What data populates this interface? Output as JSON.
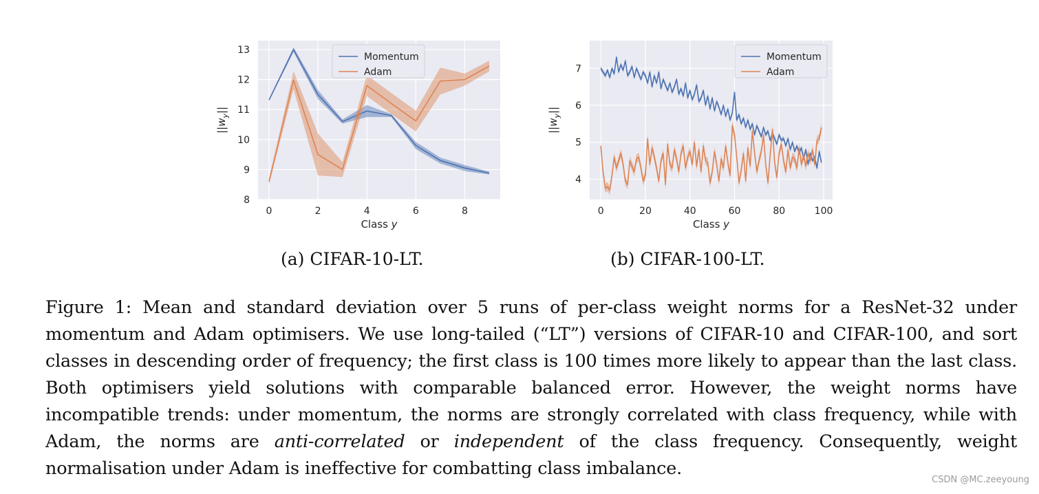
{
  "figure": {
    "caption_parts": [
      "Figure 1: Mean and standard deviation over 5 runs of per-class weight norms for a ResNet-32 under momentum and Adam optimisers. We use long-tailed (“LT”) versions of CIFAR-10 and CIFAR-100, and sort classes in descending order of frequency; the first class is 100 times more likely to appear than the last class. Both optimisers yield solutions with comparable balanced error. However, the weight norms have incompatible trends: under momentum, the norms are strongly correlated with class frequency, while with Adam, the norms are ",
      "anti-correlated",
      " or ",
      "independent",
      " of the class frequency. Consequently, weight normalisation under Adam is ineffective for combatting class imbalance."
    ],
    "watermark": "CSDN @MC.zeeyoung"
  },
  "chart_data": [
    {
      "type": "line",
      "subcaption": "(a) CIFAR-10-LT.",
      "xlabel": "Class y",
      "ylabel": "||w_y||",
      "xlim": [
        -0.45,
        9.45
      ],
      "ylim": [
        8,
        13.3
      ],
      "xticks": [
        0,
        2,
        4,
        6,
        8
      ],
      "yticks": [
        8,
        9,
        10,
        11,
        12,
        13
      ],
      "grid": true,
      "legend_position": "top-center",
      "x": [
        0,
        1,
        2,
        3,
        4,
        5,
        6,
        7,
        8,
        9
      ],
      "series": [
        {
          "name": "Momentum",
          "color": "#4c72b0",
          "values": [
            11.32,
            13.0,
            11.5,
            10.6,
            10.95,
            10.8,
            9.8,
            9.3,
            9.05,
            8.88
          ],
          "std": [
            0.03,
            0.08,
            0.15,
            0.07,
            0.2,
            0.05,
            0.12,
            0.1,
            0.1,
            0.05
          ]
        },
        {
          "name": "Adam",
          "color": "#dd8452",
          "values": [
            8.6,
            11.98,
            9.5,
            9.0,
            11.8,
            11.2,
            10.62,
            11.95,
            12.0,
            12.45
          ],
          "std": [
            0.1,
            0.3,
            0.7,
            0.25,
            0.35,
            0.35,
            0.35,
            0.45,
            0.2,
            0.18
          ]
        }
      ]
    },
    {
      "type": "line",
      "subcaption": "(b) CIFAR-100-LT.",
      "xlabel": "Class y",
      "ylabel": "||w_y||",
      "xlim": [
        -5,
        104
      ],
      "ylim": [
        3.45,
        7.75
      ],
      "xticks": [
        0,
        20,
        40,
        60,
        80,
        100
      ],
      "yticks": [
        4,
        5,
        6,
        7
      ],
      "grid": true,
      "legend_position": "top-right",
      "x_range": [
        0,
        99
      ],
      "series": [
        {
          "name": "Momentum",
          "color": "#4c72b0",
          "values": [
            7.0,
            6.9,
            6.8,
            6.95,
            6.75,
            7.0,
            6.85,
            7.3,
            6.9,
            7.1,
            6.95,
            7.2,
            6.8,
            6.9,
            7.05,
            6.75,
            7.0,
            6.85,
            6.7,
            6.9,
            6.8,
            6.6,
            6.9,
            6.5,
            6.8,
            6.6,
            6.9,
            6.45,
            6.7,
            6.55,
            6.4,
            6.6,
            6.35,
            6.5,
            6.7,
            6.3,
            6.45,
            6.25,
            6.6,
            6.2,
            6.4,
            6.15,
            6.3,
            6.55,
            6.1,
            6.2,
            6.4,
            6.0,
            6.25,
            5.9,
            6.2,
            5.85,
            6.1,
            5.95,
            5.75,
            6.0,
            5.7,
            5.9,
            5.6,
            5.8,
            6.35,
            5.6,
            5.75,
            5.5,
            5.65,
            5.4,
            5.6,
            5.35,
            5.5,
            5.2,
            5.45,
            5.3,
            5.15,
            5.4,
            5.2,
            5.3,
            5.05,
            5.25,
            5.1,
            4.95,
            5.2,
            5.05,
            5.1,
            4.9,
            5.1,
            4.8,
            5.0,
            4.75,
            4.9,
            4.7,
            4.85,
            4.55,
            4.8,
            4.4,
            4.7,
            4.5,
            4.6,
            4.3,
            4.75,
            4.45
          ],
          "std": 0.06
        },
        {
          "name": "Adam",
          "color": "#dd8452",
          "values": [
            4.9,
            4.2,
            3.75,
            3.8,
            3.7,
            4.1,
            4.6,
            4.3,
            4.5,
            4.7,
            4.4,
            3.95,
            3.85,
            4.5,
            4.35,
            4.2,
            4.55,
            4.6,
            4.3,
            3.95,
            4.1,
            5.1,
            4.4,
            4.85,
            4.6,
            4.3,
            3.95,
            4.5,
            4.7,
            3.85,
            4.95,
            4.4,
            4.3,
            4.8,
            4.55,
            4.2,
            4.7,
            4.9,
            4.3,
            4.6,
            4.75,
            4.4,
            5.0,
            4.35,
            4.8,
            4.2,
            4.9,
            4.5,
            4.45,
            3.9,
            4.2,
            4.75,
            4.4,
            3.95,
            4.55,
            4.3,
            4.9,
            4.45,
            4.1,
            5.45,
            5.2,
            4.6,
            3.9,
            4.25,
            4.7,
            3.95,
            4.85,
            4.35,
            5.3,
            4.7,
            4.2,
            4.5,
            4.75,
            5.2,
            4.4,
            3.9,
            4.65,
            5.35,
            4.45,
            4.05,
            4.7,
            4.95,
            4.5,
            4.2,
            4.8,
            4.3,
            4.6,
            4.55,
            4.3,
            4.85,
            4.4,
            4.65,
            4.35,
            4.7,
            4.5,
            4.8,
            4.4,
            5.05,
            5.1,
            5.4
          ],
          "std": 0.12
        }
      ]
    }
  ]
}
